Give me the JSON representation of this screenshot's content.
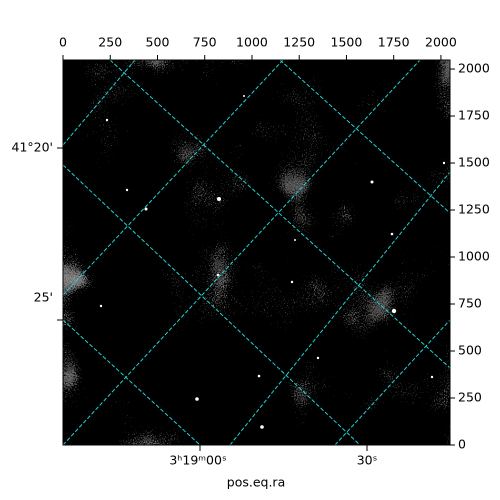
{
  "chart_data": {
    "type": "image",
    "xlim": [
      0,
      2048
    ],
    "ylim": [
      0,
      2048
    ],
    "xticks": [
      0,
      250,
      500,
      750,
      1000,
      1250,
      1500,
      1750,
      2000
    ],
    "yticks": [
      0,
      250,
      500,
      750,
      1000,
      1250,
      1500,
      1750,
      2000
    ],
    "x_label": "pos.eq.ra",
    "ra_ticks": [
      "3ʰ19ᵐ00ˢ",
      "30ˢ"
    ],
    "dec_ticks": [
      "41°20'",
      "25'"
    ]
  }
}
